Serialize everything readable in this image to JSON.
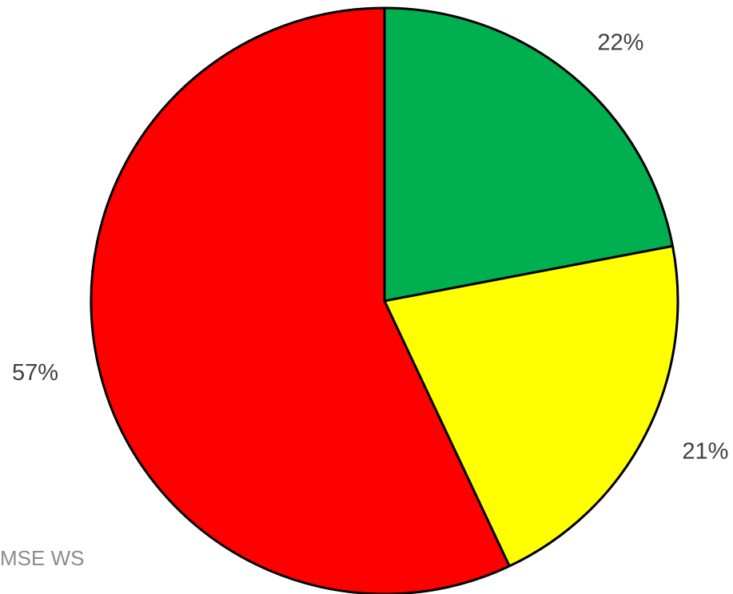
{
  "chart_data": {
    "type": "pie",
    "start_angle": "12 o'clock",
    "direction": "clockwise",
    "slices": [
      {
        "label": "22%",
        "value": 22,
        "color": "#00b050"
      },
      {
        "label": "21%",
        "value": 21,
        "color": "#ffff00"
      },
      {
        "label": "57%",
        "value": 57,
        "color": "#ff0000"
      }
    ],
    "outline_color": "#000000"
  },
  "watermark": "MSE WS"
}
